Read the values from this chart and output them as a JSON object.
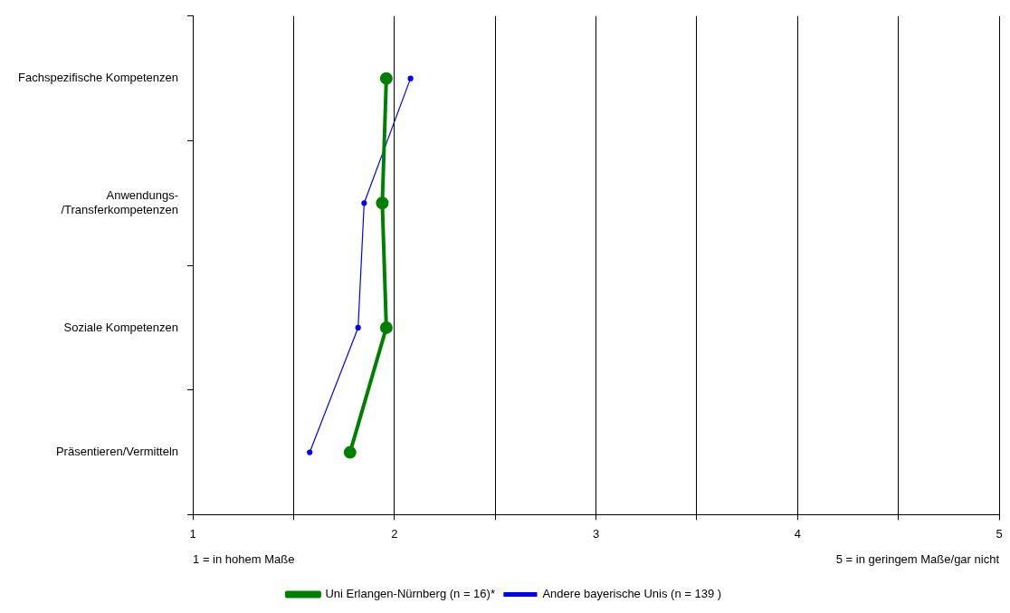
{
  "chart_data": {
    "type": "line",
    "orientation": "horizontal",
    "categories": [
      "Fachspezifische Kompetenzen",
      "Anwendungs-/Transferkompetenzen",
      "Soziale Kompetenzen",
      "Präsentieren/Vermitteln"
    ],
    "series": [
      {
        "name": "Uni Erlangen-Nürnberg (n = 16)*",
        "color": "#008000",
        "values": [
          1.96,
          1.94,
          1.96,
          1.78
        ]
      },
      {
        "name": "Andere bayerische Unis (n = 139 )",
        "color": "#0000ff",
        "values": [
          2.08,
          1.85,
          1.82,
          1.58
        ]
      }
    ],
    "xlim": [
      1,
      5
    ],
    "xticks": [
      1,
      {
        "value": 1.5,
        "label": null
      },
      2,
      {
        "value": 2.5,
        "label": null
      },
      3,
      {
        "value": 3.5,
        "label": null
      },
      4,
      {
        "value": 4.5,
        "label": null
      },
      5
    ],
    "grid": "x",
    "legend": "bottom",
    "marker": "circle",
    "line_style": "solid",
    "annotations": [
      "1 = in hohem Maße",
      "5 = in geringem Maße/gar nicht"
    ]
  }
}
